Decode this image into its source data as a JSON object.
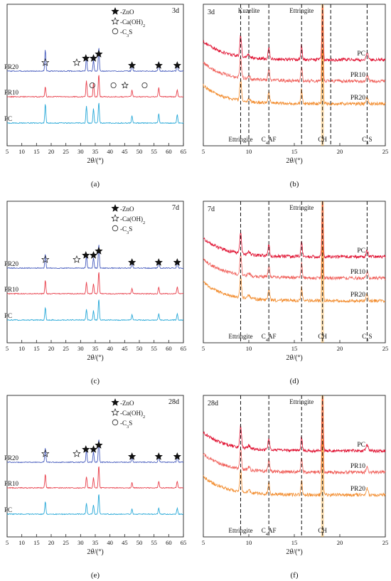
{
  "figure": {
    "captions": [
      "(a)",
      "(b)",
      "(c)",
      "(d)",
      "(e)",
      "(f)"
    ]
  },
  "colors": {
    "PC_left": "#29a9d8",
    "PR10_left": "#e8404c",
    "PR20_left": "#4a5fbf",
    "PC_right": "#e01030",
    "PR10_right": "#f0605a",
    "PR20_right": "#f28a2a",
    "CH_band": "#f0a020"
  },
  "legend_left": {
    "znO": "-ZnO",
    "caoh2": "-Ca(OH)2",
    "c3s": "-C3S"
  },
  "chart_data": [
    {
      "panel": "a",
      "type": "line",
      "age": "3d",
      "xlabel": "2θ/(°)",
      "xlim": [
        5,
        65
      ],
      "xticks": [
        5,
        10,
        15,
        20,
        25,
        30,
        35,
        40,
        45,
        50,
        55,
        60,
        65
      ],
      "series": [
        {
          "name": "PR20",
          "peaks": [
            [
              18.0,
              0.9
            ],
            [
              32.0,
              0.55
            ],
            [
              34.4,
              0.45
            ],
            [
              36.2,
              1.0
            ],
            [
              47.5,
              0.35
            ],
            [
              56.6,
              0.4
            ],
            [
              62.9,
              0.35
            ]
          ]
        },
        {
          "name": "PR10",
          "peaks": [
            [
              18.0,
              0.45
            ],
            [
              32.0,
              0.7
            ],
            [
              34.4,
              0.6
            ],
            [
              36.2,
              1.0
            ],
            [
              47.5,
              0.3
            ],
            [
              56.6,
              0.4
            ],
            [
              62.9,
              0.3
            ]
          ]
        },
        {
          "name": "PC",
          "peaks": [
            [
              18.0,
              0.9
            ],
            [
              32.0,
              0.8
            ],
            [
              34.4,
              0.7
            ],
            [
              36.2,
              1.0
            ],
            [
              47.5,
              0.35
            ],
            [
              56.6,
              0.45
            ],
            [
              62.9,
              0.4
            ]
          ]
        }
      ],
      "markers": [
        {
          "type": "caoh2",
          "x": 18.0
        },
        {
          "type": "caoh2",
          "x": 28.7
        },
        {
          "type": "zno",
          "x": 31.8
        },
        {
          "type": "zno",
          "x": 34.4
        },
        {
          "type": "zno",
          "x": 36.2
        },
        {
          "type": "zno",
          "x": 47.5
        },
        {
          "type": "zno",
          "x": 56.6
        },
        {
          "type": "zno",
          "x": 62.9
        },
        {
          "type": "c3s",
          "x": 34.0,
          "row": "PR10"
        },
        {
          "type": "c3s",
          "x": 41.2,
          "row": "PR10"
        },
        {
          "type": "caoh2",
          "x": 45.1,
          "row": "PR10"
        },
        {
          "type": "c3s",
          "x": 51.8,
          "row": "PR10"
        }
      ]
    },
    {
      "panel": "b",
      "type": "line",
      "age": "3d",
      "xlabel": "2θ/(°)",
      "xlim": [
        5,
        25
      ],
      "xticks": [
        5,
        10,
        15,
        20,
        25
      ],
      "series": [
        {
          "name": "PC"
        },
        {
          "name": "PR10"
        },
        {
          "name": "PR20"
        }
      ],
      "guides": [
        {
          "x": 9.1,
          "label": "Ettringite",
          "pos": "bottom"
        },
        {
          "x": 10.0,
          "label": "Kuzelite",
          "pos": "top"
        },
        {
          "x": 12.2,
          "label": "C4AF",
          "pos": "bottom"
        },
        {
          "x": 15.8,
          "label": "Ettringite",
          "pos": "top"
        },
        {
          "x": 18.1,
          "label": "CH",
          "pos": "bottom"
        },
        {
          "x": 19.0,
          "label": "",
          "pos": "top"
        },
        {
          "x": 23.0,
          "label": "C3S",
          "pos": "bottom"
        }
      ]
    },
    {
      "panel": "c",
      "type": "line",
      "age": "7d",
      "xlabel": "2θ/(°)",
      "xlim": [
        5,
        65
      ],
      "xticks": [
        5,
        10,
        15,
        20,
        25,
        30,
        35,
        40,
        45,
        50,
        55,
        60,
        65
      ],
      "series": [
        {
          "name": "PR20"
        },
        {
          "name": "PR10"
        },
        {
          "name": "PC"
        }
      ]
    },
    {
      "panel": "d",
      "type": "line",
      "age": "7d",
      "xlabel": "2θ/(°)",
      "xlim": [
        5,
        25
      ],
      "xticks": [
        5,
        10,
        15,
        20,
        25
      ],
      "series": [
        {
          "name": "PC"
        },
        {
          "name": "PR10"
        },
        {
          "name": "PR20"
        }
      ],
      "guides": [
        {
          "x": 9.1,
          "label": "Ettringite",
          "pos": "bottom"
        },
        {
          "x": 12.2,
          "label": "C4AF",
          "pos": "bottom"
        },
        {
          "x": 15.8,
          "label": "Ettringite",
          "pos": "top"
        },
        {
          "x": 18.1,
          "label": "CH",
          "pos": "bottom"
        },
        {
          "x": 23.0,
          "label": "C3S",
          "pos": "bottom"
        }
      ]
    },
    {
      "panel": "e",
      "type": "line",
      "age": "28d",
      "xlabel": "2θ/(°)",
      "xlim": [
        5,
        65
      ],
      "xticks": [
        5,
        10,
        15,
        20,
        25,
        30,
        35,
        40,
        45,
        50,
        55,
        60,
        65
      ],
      "series": [
        {
          "name": "PR20"
        },
        {
          "name": "PR10"
        },
        {
          "name": "PC"
        }
      ]
    },
    {
      "panel": "f",
      "type": "line",
      "age": "28d",
      "xlabel": "2θ/(°)",
      "xlim": [
        5,
        25
      ],
      "xticks": [
        5,
        10,
        15,
        20,
        25
      ],
      "series": [
        {
          "name": "PC"
        },
        {
          "name": "PR10"
        },
        {
          "name": "PR20"
        }
      ],
      "guides": [
        {
          "x": 9.1,
          "label": "Ettringite",
          "pos": "bottom"
        },
        {
          "x": 12.2,
          "label": "C4AF",
          "pos": "bottom"
        },
        {
          "x": 15.8,
          "label": "Ettringite",
          "pos": "top"
        },
        {
          "x": 18.1,
          "label": "CH",
          "pos": "bottom"
        }
      ]
    }
  ]
}
